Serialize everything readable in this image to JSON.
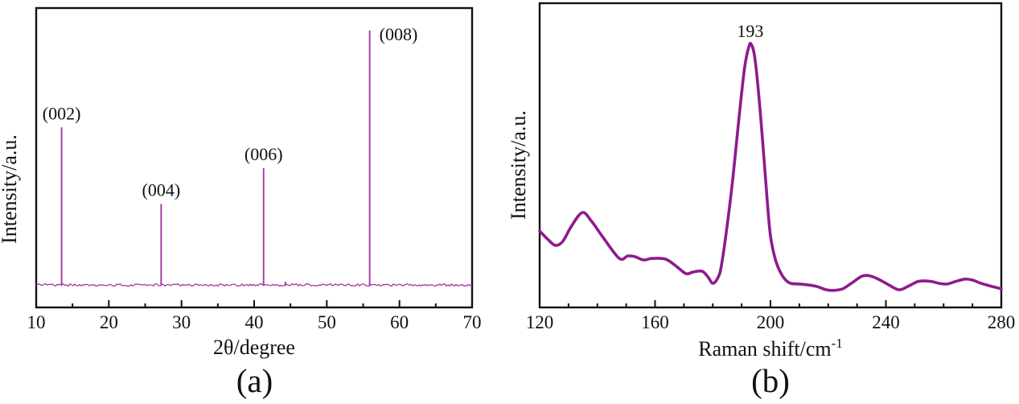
{
  "figure": {
    "captions": {
      "a": "(a)",
      "b": "(b)"
    }
  },
  "chart_data": [
    {
      "id": "a",
      "type": "line",
      "subtype": "xrd-pattern",
      "xlabel": "2θ/degree",
      "ylabel": "Intensity/a.u.",
      "xlim": [
        10,
        70
      ],
      "x_major_ticks": [
        10,
        20,
        30,
        40,
        50,
        60,
        70
      ],
      "x_minor_ticks": [
        15,
        25,
        35,
        45,
        55,
        65
      ],
      "y_ticks": [],
      "grid": false,
      "line_color": "#a438a4",
      "axis_color": "#111111",
      "peaks": [
        {
          "two_theta": 13.5,
          "rel_intensity": 0.62,
          "label": "(002)"
        },
        {
          "two_theta": 27.2,
          "rel_intensity": 0.32,
          "label": "(004)"
        },
        {
          "two_theta": 41.3,
          "rel_intensity": 0.46,
          "label": "(006)"
        },
        {
          "two_theta": 44.3,
          "rel_intensity": 0.015,
          "label": ""
        },
        {
          "two_theta": 55.9,
          "rel_intensity": 1.0,
          "label": "(008)"
        }
      ]
    },
    {
      "id": "b",
      "type": "line",
      "subtype": "raman-spectrum",
      "xlabel_main": "Raman shift/cm",
      "xlabel_sup": "-1",
      "ylabel": "Intensity/a.u.",
      "xlim": [
        120,
        280
      ],
      "x_major_ticks": [
        120,
        160,
        200,
        240,
        280
      ],
      "x_minor_ticks": [
        130,
        140,
        150,
        170,
        180,
        190,
        210,
        220,
        230,
        250,
        260,
        270
      ],
      "y_ticks": [],
      "grid": false,
      "line_color": "#8e1b8e",
      "axis_color": "#111111",
      "peak_annotation": {
        "x": 193,
        "label": "193"
      },
      "points": [
        [
          120,
          0.251
        ],
        [
          123,
          0.222
        ],
        [
          125.5,
          0.204
        ],
        [
          128,
          0.217
        ],
        [
          131,
          0.267
        ],
        [
          134.8,
          0.312
        ],
        [
          138,
          0.283
        ],
        [
          142,
          0.23
        ],
        [
          147.6,
          0.161
        ],
        [
          150.5,
          0.169
        ],
        [
          153,
          0.167
        ],
        [
          156,
          0.156
        ],
        [
          159,
          0.161
        ],
        [
          163.5,
          0.159
        ],
        [
          167,
          0.138
        ],
        [
          170.7,
          0.111
        ],
        [
          173,
          0.116
        ],
        [
          176.3,
          0.119
        ],
        [
          178.5,
          0.098
        ],
        [
          180,
          0.079
        ],
        [
          181.8,
          0.098
        ],
        [
          183,
          0.138
        ],
        [
          185,
          0.27
        ],
        [
          187,
          0.429
        ],
        [
          189,
          0.614
        ],
        [
          191,
          0.786
        ],
        [
          192.5,
          0.857
        ],
        [
          193.3,
          0.865
        ],
        [
          194.5,
          0.825
        ],
        [
          196,
          0.693
        ],
        [
          197.5,
          0.521
        ],
        [
          199,
          0.336
        ],
        [
          200,
          0.235
        ],
        [
          201.5,
          0.164
        ],
        [
          203,
          0.124
        ],
        [
          205,
          0.093
        ],
        [
          207,
          0.079
        ],
        [
          210,
          0.077
        ],
        [
          213,
          0.074
        ],
        [
          216,
          0.069
        ],
        [
          219.4,
          0.058
        ],
        [
          222,
          0.056
        ],
        [
          225,
          0.061
        ],
        [
          228,
          0.079
        ],
        [
          231.8,
          0.103
        ],
        [
          234.8,
          0.103
        ],
        [
          238,
          0.09
        ],
        [
          241,
          0.074
        ],
        [
          244.6,
          0.058
        ],
        [
          248,
          0.071
        ],
        [
          251,
          0.085
        ],
        [
          253.5,
          0.087
        ],
        [
          256,
          0.085
        ],
        [
          258.5,
          0.079
        ],
        [
          261.3,
          0.077
        ],
        [
          264,
          0.085
        ],
        [
          267.4,
          0.093
        ],
        [
          270,
          0.09
        ],
        [
          273,
          0.079
        ],
        [
          276,
          0.071
        ],
        [
          280,
          0.061
        ]
      ]
    }
  ]
}
